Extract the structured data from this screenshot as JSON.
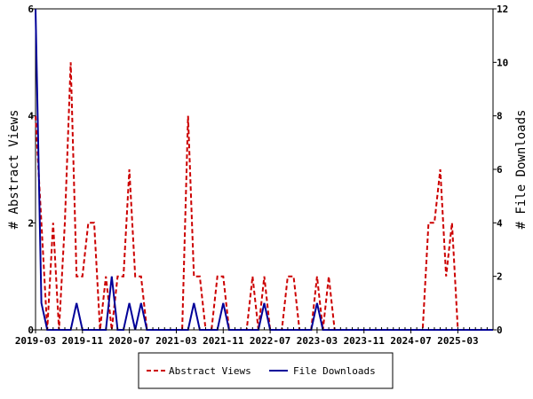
{
  "chart_data": {
    "type": "line",
    "x_tick_labels": [
      "2019-03",
      "2019-11",
      "2020-07",
      "2021-03",
      "2021-11",
      "2022-07",
      "2023-03",
      "2023-11",
      "2024-07",
      "2025-03"
    ],
    "y_left": {
      "label": "# Abstract Views",
      "min": 0,
      "max": 6,
      "ticks": [
        0,
        2,
        4,
        6
      ]
    },
    "y_right": {
      "label": "# File Downloads",
      "min": 0,
      "max": 12,
      "ticks": [
        0,
        2,
        4,
        6,
        8,
        10,
        12
      ]
    },
    "x_range": [
      "2019-03",
      "2025-09"
    ],
    "grid": false,
    "legend_position": "bottom",
    "series": [
      {
        "name": "Abstract Views",
        "axis": "left",
        "color": "#cc0000",
        "dash": true,
        "x": [
          "2019-03",
          "2019-04",
          "2019-05",
          "2019-06",
          "2019-07",
          "2019-08",
          "2019-09",
          "2019-10",
          "2019-11",
          "2019-12",
          "2020-01",
          "2020-02",
          "2020-03",
          "2020-04",
          "2020-05",
          "2020-06",
          "2020-07",
          "2020-08",
          "2020-09",
          "2020-10",
          "2020-11",
          "2020-12",
          "2021-01",
          "2021-02",
          "2021-03",
          "2021-04",
          "2021-05",
          "2021-06",
          "2021-07",
          "2021-08",
          "2021-09",
          "2021-10",
          "2021-11",
          "2021-12",
          "2022-01",
          "2022-02",
          "2022-03",
          "2022-04",
          "2022-05",
          "2022-06",
          "2022-07",
          "2022-08",
          "2022-09",
          "2022-10",
          "2022-11",
          "2022-12",
          "2023-01",
          "2023-02",
          "2023-03",
          "2023-04",
          "2023-05",
          "2023-06",
          "2023-07",
          "2023-08",
          "2023-09",
          "2023-10",
          "2023-11",
          "2023-12",
          "2024-01",
          "2024-02",
          "2024-03",
          "2024-04",
          "2024-05",
          "2024-06",
          "2024-07",
          "2024-08",
          "2024-09",
          "2024-10",
          "2024-11",
          "2024-12",
          "2025-01",
          "2025-02",
          "2025-03",
          "2025-04",
          "2025-05",
          "2025-06",
          "2025-07",
          "2025-08",
          "2025-09"
        ],
        "values": [
          4,
          2,
          0,
          2,
          0,
          2,
          5,
          1,
          1,
          2,
          2,
          0,
          1,
          0,
          1,
          1,
          3,
          1,
          1,
          0,
          0,
          0,
          0,
          0,
          0,
          0,
          4,
          1,
          1,
          0,
          0,
          1,
          1,
          0,
          0,
          0,
          0,
          1,
          0,
          1,
          0,
          0,
          0,
          1,
          1,
          0,
          0,
          0,
          1,
          0,
          1,
          0,
          0,
          0,
          0,
          0,
          0,
          0,
          0,
          0,
          0,
          0,
          0,
          0,
          0,
          0,
          0,
          2,
          2,
          3,
          1,
          2,
          0,
          0,
          0,
          0,
          0,
          0,
          0
        ]
      },
      {
        "name": "File Downloads",
        "axis": "right",
        "color": "#000099",
        "dash": false,
        "x": [
          "2019-03",
          "2019-04",
          "2019-05",
          "2019-06",
          "2019-07",
          "2019-08",
          "2019-09",
          "2019-10",
          "2019-11",
          "2019-12",
          "2020-01",
          "2020-02",
          "2020-03",
          "2020-04",
          "2020-05",
          "2020-06",
          "2020-07",
          "2020-08",
          "2020-09",
          "2020-10",
          "2020-11",
          "2020-12",
          "2021-01",
          "2021-02",
          "2021-03",
          "2021-04",
          "2021-05",
          "2021-06",
          "2021-07",
          "2021-08",
          "2021-09",
          "2021-10",
          "2021-11",
          "2021-12",
          "2022-01",
          "2022-02",
          "2022-03",
          "2022-04",
          "2022-05",
          "2022-06",
          "2022-07",
          "2022-08",
          "2022-09",
          "2022-10",
          "2022-11",
          "2022-12",
          "2023-01",
          "2023-02",
          "2023-03",
          "2023-04",
          "2023-05",
          "2023-06",
          "2023-07",
          "2023-08",
          "2023-09",
          "2023-10",
          "2023-11",
          "2023-12",
          "2024-01",
          "2024-02",
          "2024-03",
          "2024-04",
          "2024-05",
          "2024-06",
          "2024-07",
          "2024-08",
          "2024-09",
          "2024-10",
          "2024-11",
          "2024-12",
          "2025-01",
          "2025-02",
          "2025-03",
          "2025-04",
          "2025-05",
          "2025-06",
          "2025-07",
          "2025-08",
          "2025-09"
        ],
        "values": [
          12,
          1,
          0,
          0,
          0,
          0,
          0,
          1,
          0,
          0,
          0,
          0,
          0,
          2,
          0,
          0,
          1,
          0,
          1,
          0,
          0,
          0,
          0,
          0,
          0,
          0,
          0,
          1,
          0,
          0,
          0,
          0,
          1,
          0,
          0,
          0,
          0,
          0,
          0,
          1,
          0,
          0,
          0,
          0,
          0,
          0,
          0,
          0,
          1,
          0,
          0,
          0,
          0,
          0,
          0,
          0,
          0,
          0,
          0,
          0,
          0,
          0,
          0,
          0,
          0,
          0,
          0,
          0,
          0,
          0,
          0,
          0,
          0,
          0,
          0,
          0,
          0,
          0,
          0
        ]
      }
    ]
  }
}
